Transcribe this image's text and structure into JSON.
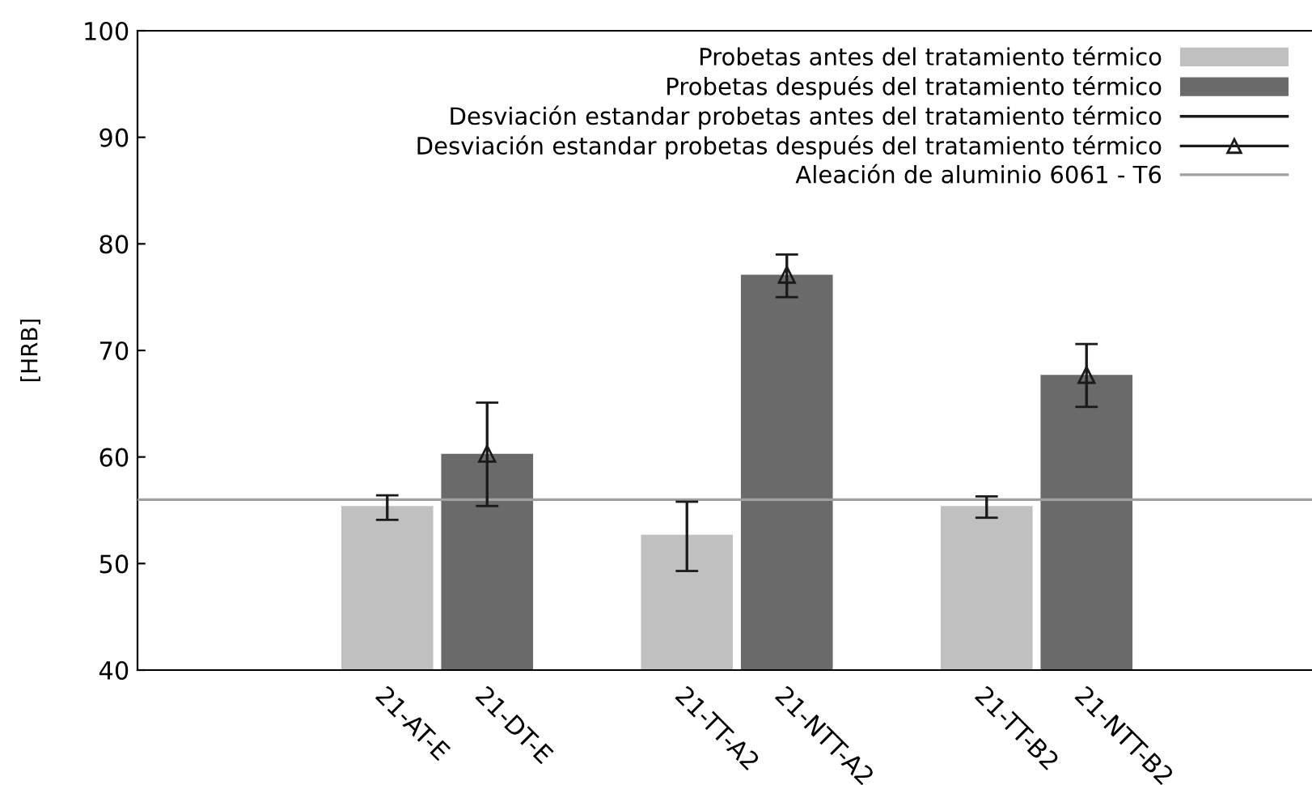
{
  "chart_data": {
    "type": "bar",
    "categories": [
      null,
      null,
      "21-AT-E",
      "21-DT-E",
      null,
      "21-TT-A2",
      "21-NTT-A2",
      null,
      "21-TT-B2",
      "21-NTT-B2",
      null,
      null
    ],
    "ylabel": "[HRB]",
    "ylim": [
      40,
      100
    ],
    "yticks": [
      40,
      50,
      60,
      70,
      80,
      90,
      100
    ],
    "series": [
      {
        "name": "Probetas antes del tratamiento térmico",
        "color": "#c0c0c0",
        "values": [
          null,
          null,
          55.4,
          null,
          null,
          52.7,
          null,
          null,
          55.4,
          null,
          null,
          null
        ],
        "errors": [
          null,
          null,
          [
            54.1,
            56.4
          ],
          null,
          null,
          [
            49.3,
            55.8
          ],
          null,
          null,
          [
            54.3,
            56.3
          ],
          null,
          null,
          null
        ]
      },
      {
        "name": "Probetas después del tratamiento térmico",
        "color": "#6a6a6a",
        "values": [
          null,
          null,
          null,
          60.3,
          null,
          null,
          77.1,
          null,
          null,
          67.7,
          null,
          null
        ]
      },
      {
        "type": "scatter",
        "marker": "triangle",
        "name": "Desviación estandar probetas después del tratamiento térmico",
        "color": "#1a1a1a",
        "values": [
          null,
          null,
          null,
          60.3,
          null,
          null,
          77.1,
          null,
          null,
          67.7,
          null,
          null
        ],
        "errors": [
          null,
          null,
          null,
          [
            55.4,
            65.1
          ],
          null,
          null,
          [
            75.0,
            79.0
          ],
          null,
          null,
          [
            64.7,
            70.6
          ],
          null,
          null
        ]
      }
    ],
    "ref_lines": [
      {
        "axis": "y",
        "value": 56,
        "label": "Aleación de aluminio 6061 - T6",
        "color": "#a0a0a0"
      }
    ],
    "annotations": [
      "Desviación estandar probetas antes del tratamiento térmico"
    ],
    "legend": "top right",
    "grid": false
  }
}
